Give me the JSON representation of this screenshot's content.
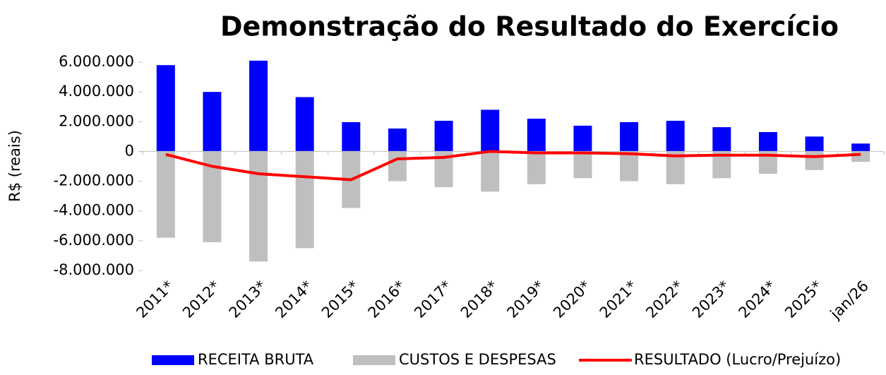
{
  "chart_data": {
    "type": "bar_line",
    "title": "Demonstração do Resultado do Exercício",
    "y_label": "R$ (reais)",
    "categories": [
      "2011*",
      "2012*",
      "2013*",
      "2014*",
      "2015*",
      "2016*",
      "2017*",
      "2018*",
      "2019*",
      "2020*",
      "2021*",
      "2022*",
      "2023*",
      "2024*",
      "2025*",
      "jan/26"
    ],
    "series": [
      {
        "name": "RECEITA BRUTA",
        "type": "bar",
        "color": "#0000ff",
        "values": [
          5800000,
          4000000,
          6100000,
          3650000,
          1970000,
          1540000,
          2060000,
          2800000,
          2200000,
          1730000,
          1970000,
          2060000,
          1630000,
          1300000,
          1000000,
          530000
        ]
      },
      {
        "name": "CUSTOS E DESPESAS",
        "type": "bar",
        "color": "#bfbfbf",
        "values": [
          -5800000,
          -6100000,
          -7400000,
          -6500000,
          -3800000,
          -2000000,
          -2400000,
          -2700000,
          -2200000,
          -1800000,
          -2000000,
          -2200000,
          -1800000,
          -1500000,
          -1250000,
          -700000
        ]
      },
      {
        "name": "RESULTADO (Lucro/Prejuízo)",
        "type": "line",
        "color": "#ff0000",
        "values": [
          -200000,
          -1000000,
          -1500000,
          -1700000,
          -1900000,
          -500000,
          -400000,
          0,
          -100000,
          -100000,
          -150000,
          -300000,
          -250000,
          -250000,
          -350000,
          -200000
        ]
      }
    ],
    "ylim": [
      -8000000,
      6000000
    ],
    "yticks": [
      {
        "value": 6000000,
        "label": "6.000.000"
      },
      {
        "value": 4000000,
        "label": "4.000.000"
      },
      {
        "value": 2000000,
        "label": "2.000.000"
      },
      0,
      {
        "value": -2000000,
        "label": "-2.000.000"
      },
      {
        "value": -4000000,
        "label": "-4.000.000"
      },
      {
        "value": -6000000,
        "label": "-6.000.000"
      },
      {
        "value": -8000000,
        "label": "-8.000.000"
      }
    ],
    "negative_tick_color": "#ff0000",
    "legend": "bottom"
  }
}
